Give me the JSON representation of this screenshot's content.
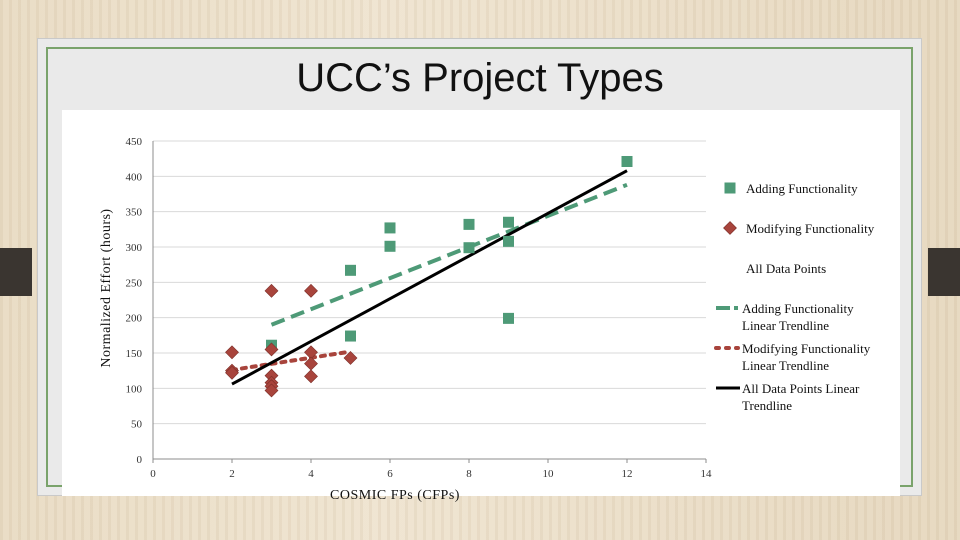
{
  "slide": {
    "title": "UCC’s Project Types"
  },
  "colors": {
    "adding": "#4e9a77",
    "modifying": "#a8443c",
    "all": "#000000",
    "slide_border": "#7aa36b"
  },
  "chart_data": {
    "type": "scatter",
    "title": "",
    "xlabel": "COSMIC FPs (CFPs)",
    "ylabel": "Normalized Effort (hours)",
    "xlim": [
      0,
      14
    ],
    "ylim": [
      0,
      450
    ],
    "xticks": [
      0,
      2,
      4,
      6,
      8,
      10,
      12,
      14
    ],
    "yticks": [
      0,
      50,
      100,
      150,
      200,
      250,
      300,
      350,
      400,
      450
    ],
    "grid": "horizontal",
    "legend_position": "right",
    "series": [
      {
        "name": "Adding Functionality",
        "marker": "square",
        "points": [
          [
            3,
            161
          ],
          [
            5,
            267
          ],
          [
            5,
            174
          ],
          [
            6,
            327
          ],
          [
            6,
            301
          ],
          [
            8,
            332
          ],
          [
            8,
            299
          ],
          [
            9,
            335
          ],
          [
            9,
            308
          ],
          [
            9,
            199
          ],
          [
            12,
            421
          ]
        ]
      },
      {
        "name": "Modifying Functionality",
        "marker": "diamond",
        "points": [
          [
            2,
            151
          ],
          [
            2,
            125
          ],
          [
            2,
            122
          ],
          [
            3,
            238
          ],
          [
            3,
            155
          ],
          [
            3,
            118
          ],
          [
            3,
            108
          ],
          [
            3,
            103
          ],
          [
            3,
            97
          ],
          [
            4,
            238
          ],
          [
            4,
            151
          ],
          [
            4,
            135
          ],
          [
            4,
            117
          ],
          [
            5,
            143
          ]
        ]
      },
      {
        "name": "All Data Points",
        "marker": "none",
        "points": []
      }
    ],
    "trendlines": [
      {
        "name": "Adding Functionality Linear Trendline",
        "style": "dashed",
        "x": [
          3,
          12
        ],
        "y": [
          190,
          388
        ]
      },
      {
        "name": "Modifying Functionality Linear Trendline",
        "style": "dotted",
        "x": [
          2,
          5
        ],
        "y": [
          126,
          152
        ]
      },
      {
        "name": "All Data Points Linear Trendline",
        "style": "solid",
        "x": [
          2,
          12
        ],
        "y": [
          106,
          408
        ]
      }
    ]
  }
}
